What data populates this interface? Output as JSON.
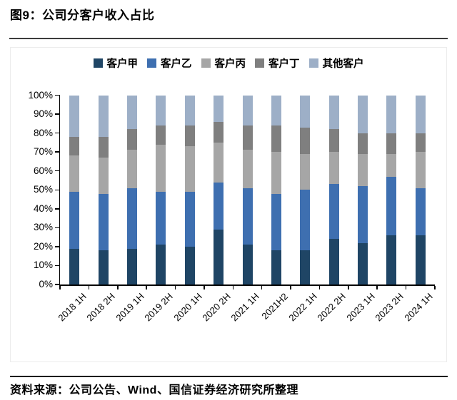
{
  "title": "图9：公司分客户收入占比",
  "source_note": "资料来源：公司公告、Wind、国信证券经济研究所整理",
  "colors": {
    "customer_a": "#1F4565",
    "customer_b": "#3E6FB0",
    "customer_c": "#A6A6A6",
    "customer_d": "#7F7F7F",
    "customer_other": "#9DAFC7",
    "axis": "#000000",
    "title_rule": "#3C3C3C",
    "panel_border": "#ECECEC"
  },
  "chart_data": {
    "type": "bar",
    "stacked": true,
    "title": "公司分客户收入占比",
    "categories": [
      "2018 1H",
      "2018 2H",
      "2019 1H",
      "2019 2H",
      "2020 1H",
      "2020 2H",
      "2021 1H",
      "2021H2",
      "2022 1H",
      "2022 2H",
      "2023 1H",
      "2023 2H",
      "2024 1H"
    ],
    "series": [
      {
        "name": "客户甲",
        "color": "#1F4565",
        "values": [
          19,
          18,
          19,
          21,
          20,
          29,
          21,
          18,
          18,
          24,
          22,
          26,
          26
        ]
      },
      {
        "name": "客户乙",
        "color": "#3E6FB0",
        "values": [
          30,
          30,
          32,
          28,
          29,
          25,
          30,
          30,
          32,
          29,
          30,
          31,
          25
        ]
      },
      {
        "name": "客户丙",
        "color": "#A6A6A6",
        "values": [
          19,
          19,
          20,
          25,
          24,
          21,
          20,
          22,
          19,
          17,
          17,
          12,
          19
        ]
      },
      {
        "name": "客户丁",
        "color": "#7F7F7F",
        "values": [
          10,
          11,
          11,
          10,
          11,
          11,
          13,
          14,
          14,
          12,
          11,
          11,
          10
        ]
      },
      {
        "name": "其他客户",
        "color": "#9DAFC7",
        "values": [
          22,
          22,
          18,
          16,
          16,
          14,
          16,
          16,
          17,
          18,
          20,
          20,
          20
        ]
      }
    ],
    "ylim": [
      0,
      100
    ],
    "ytick_step": 10,
    "ytick_suffix": "%",
    "xlabel": "",
    "ylabel": "",
    "legend_position": "top",
    "grid": false
  }
}
